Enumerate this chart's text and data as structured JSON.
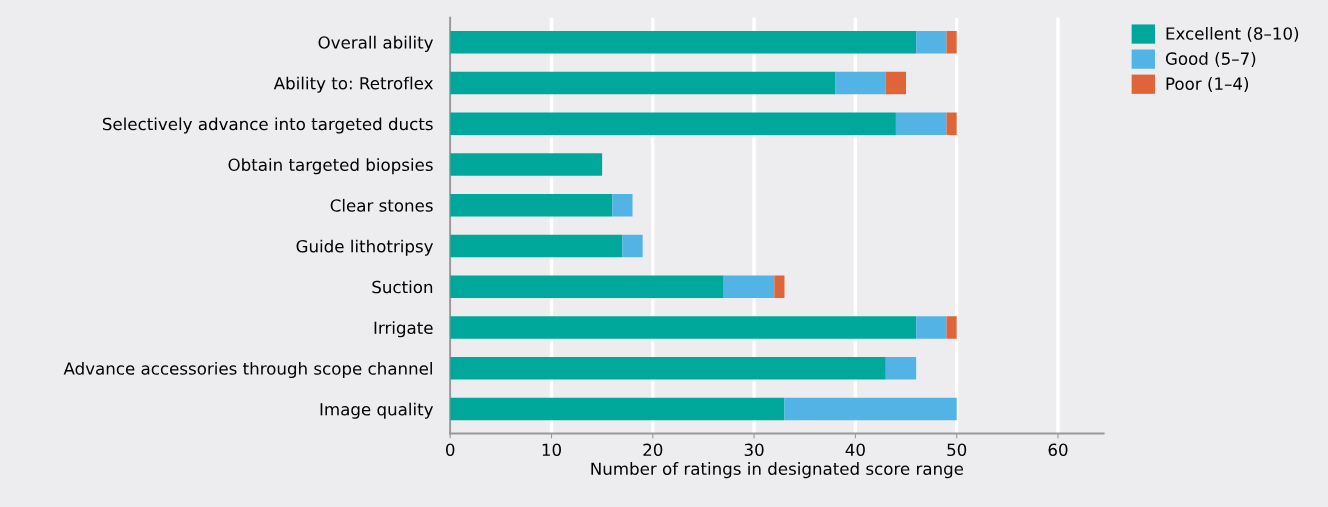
{
  "chart_data": {
    "type": "bar",
    "orientation": "horizontal",
    "stacked": true,
    "categories": [
      "Overall ability",
      "Ability to: Retroflex",
      "Selectively advance into targeted ducts",
      "Obtain targeted biopsies",
      "Clear stones",
      "Guide lithotripsy",
      "Suction",
      "Irrigate",
      "Advance accessories through scope channel",
      "Image quality"
    ],
    "series": [
      {
        "name": "Excellent (8–10)",
        "color": "#00a89c",
        "values": [
          46,
          38,
          44,
          15,
          16,
          17,
          27,
          46,
          43,
          33
        ]
      },
      {
        "name": "Good (5–7)",
        "color": "#53b3e5",
        "values": [
          3,
          5,
          5,
          0,
          2,
          2,
          5,
          3,
          3,
          17
        ]
      },
      {
        "name": "Poor (1–4)",
        "color": "#e0643a",
        "values": [
          1,
          2,
          1,
          0,
          0,
          0,
          1,
          1,
          0,
          0
        ]
      }
    ],
    "xlabel": "Number of ratings in designated score range",
    "xlim": [
      0,
      64.5
    ],
    "xticks": [
      0,
      10,
      20,
      30,
      40,
      50,
      60
    ],
    "grid": "x",
    "legend": "top right"
  }
}
